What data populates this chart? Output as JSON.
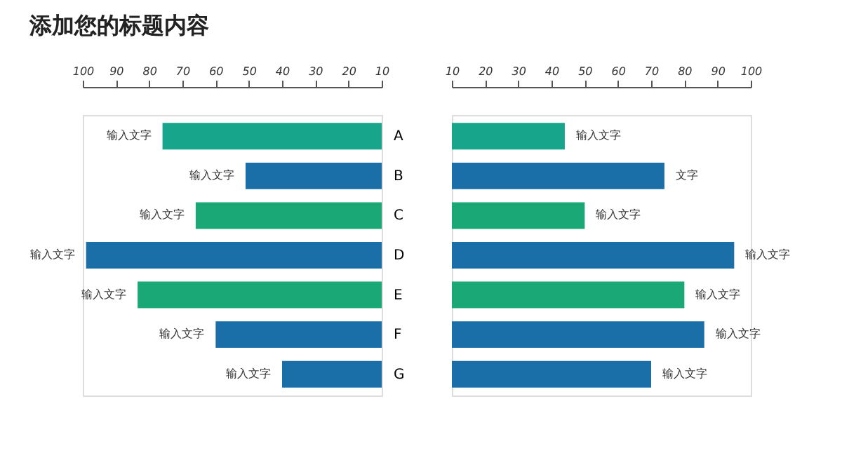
{
  "chart_data": [
    {
      "type": "bar",
      "orientation": "horizontal",
      "title": "添加您的标题内容",
      "categories": [
        "A",
        "B",
        "C",
        "D",
        "E",
        "F",
        "G"
      ],
      "values": [
        76,
        51,
        66,
        99,
        83.5,
        60,
        40
      ],
      "colors": [
        "#17a58b",
        "#1b6fa8",
        "#1aa876",
        "#1b6fa8",
        "#1aa876",
        "#1b6fa8",
        "#1b6fa8"
      ],
      "value_labels": [
        "输入文字",
        "输入文字",
        "输入文字",
        "输入文字",
        "输入文字",
        "输入文字",
        "输入文字"
      ],
      "xlim": [
        100,
        10
      ],
      "xticks": [
        100,
        90,
        80,
        70,
        60,
        50,
        40,
        30,
        20,
        10
      ],
      "grid": false
    },
    {
      "type": "bar",
      "orientation": "horizontal",
      "values": [
        44,
        74,
        50,
        95,
        80,
        86,
        70
      ],
      "colors": [
        "#17a58b",
        "#1b6fa8",
        "#1aa876",
        "#1b6fa8",
        "#1aa876",
        "#1b6fa8",
        "#1b6fa8"
      ],
      "value_labels": [
        "输入文字",
        "文字",
        "输入文字",
        "输入文字",
        "输入文字",
        "输入文字",
        "输入文字"
      ],
      "xlim": [
        10,
        100
      ],
      "xticks": [
        10,
        20,
        30,
        40,
        50,
        60,
        70,
        80,
        90,
        100
      ],
      "grid": false,
      "tick_labels": "x"
    }
  ]
}
